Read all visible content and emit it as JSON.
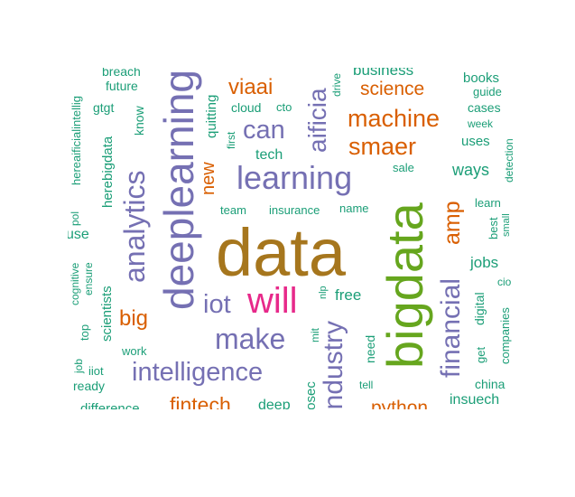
{
  "colors": {
    "teal": "#1b9e77",
    "orange": "#d95f02",
    "purple": "#7570b3",
    "pink": "#e7298a",
    "green": "#66a61e",
    "gold": "#a6761d"
  },
  "words": [
    {
      "text": "data",
      "color": "gold"
    },
    {
      "text": "bigdata",
      "color": "green"
    },
    {
      "text": "will",
      "color": "pink"
    },
    {
      "text": "deeplearning",
      "color": "purple"
    },
    {
      "text": "learning",
      "color": "purple"
    },
    {
      "text": "make",
      "color": "purple"
    },
    {
      "text": "intelligence",
      "color": "purple"
    },
    {
      "text": "analytics",
      "color": "purple"
    },
    {
      "text": "industry",
      "color": "purple"
    },
    {
      "text": "financial",
      "color": "purple"
    },
    {
      "text": "aificia",
      "color": "purple"
    },
    {
      "text": "can",
      "color": "purple"
    },
    {
      "text": "iot",
      "color": "purple"
    },
    {
      "text": "machine",
      "color": "orange"
    },
    {
      "text": "smaer",
      "color": "orange"
    },
    {
      "text": "science",
      "color": "orange"
    },
    {
      "text": "viaai",
      "color": "orange"
    },
    {
      "text": "amp",
      "color": "orange"
    },
    {
      "text": "big",
      "color": "orange"
    },
    {
      "text": "new",
      "color": "orange"
    },
    {
      "text": "fintech",
      "color": "orange"
    },
    {
      "text": "python",
      "color": "orange"
    },
    {
      "text": "business",
      "color": "teal"
    },
    {
      "text": "breach",
      "color": "teal"
    },
    {
      "text": "future",
      "color": "teal"
    },
    {
      "text": "gtgt",
      "color": "teal"
    },
    {
      "text": "know",
      "color": "teal"
    },
    {
      "text": "herebigdata",
      "color": "teal"
    },
    {
      "text": "hereaificialintellig",
      "color": "teal"
    },
    {
      "text": "quitting",
      "color": "teal"
    },
    {
      "text": "cloud",
      "color": "teal"
    },
    {
      "text": "cto",
      "color": "teal"
    },
    {
      "text": "drive",
      "color": "teal"
    },
    {
      "text": "first",
      "color": "teal"
    },
    {
      "text": "tech",
      "color": "teal"
    },
    {
      "text": "team",
      "color": "teal"
    },
    {
      "text": "insurance",
      "color": "teal"
    },
    {
      "text": "name",
      "color": "teal"
    },
    {
      "text": "sale",
      "color": "teal"
    },
    {
      "text": "books",
      "color": "teal"
    },
    {
      "text": "guide",
      "color": "teal"
    },
    {
      "text": "cases",
      "color": "teal"
    },
    {
      "text": "week",
      "color": "teal"
    },
    {
      "text": "uses",
      "color": "teal"
    },
    {
      "text": "ways",
      "color": "teal"
    },
    {
      "text": "detection",
      "color": "teal"
    },
    {
      "text": "learn",
      "color": "teal"
    },
    {
      "text": "best",
      "color": "teal"
    },
    {
      "text": "small",
      "color": "teal"
    },
    {
      "text": "jobs",
      "color": "teal"
    },
    {
      "text": "cio",
      "color": "teal"
    },
    {
      "text": "digital",
      "color": "teal"
    },
    {
      "text": "companies",
      "color": "teal"
    },
    {
      "text": "get",
      "color": "teal"
    },
    {
      "text": "china",
      "color": "teal"
    },
    {
      "text": "insuech",
      "color": "teal"
    },
    {
      "text": "pol",
      "color": "teal"
    },
    {
      "text": "use",
      "color": "teal"
    },
    {
      "text": "cognitive",
      "color": "teal"
    },
    {
      "text": "ensure",
      "color": "teal"
    },
    {
      "text": "scientists",
      "color": "teal"
    },
    {
      "text": "top",
      "color": "teal"
    },
    {
      "text": "work",
      "color": "teal"
    },
    {
      "text": "job",
      "color": "teal"
    },
    {
      "text": "iiot",
      "color": "teal"
    },
    {
      "text": "ready",
      "color": "teal"
    },
    {
      "text": "difference",
      "color": "teal"
    },
    {
      "text": "free",
      "color": "teal"
    },
    {
      "text": "nlp",
      "color": "teal"
    },
    {
      "text": "mit",
      "color": "teal"
    },
    {
      "text": "need",
      "color": "teal"
    },
    {
      "text": "fosec",
      "color": "teal"
    },
    {
      "text": "tell",
      "color": "teal"
    },
    {
      "text": "deep",
      "color": "teal"
    }
  ]
}
